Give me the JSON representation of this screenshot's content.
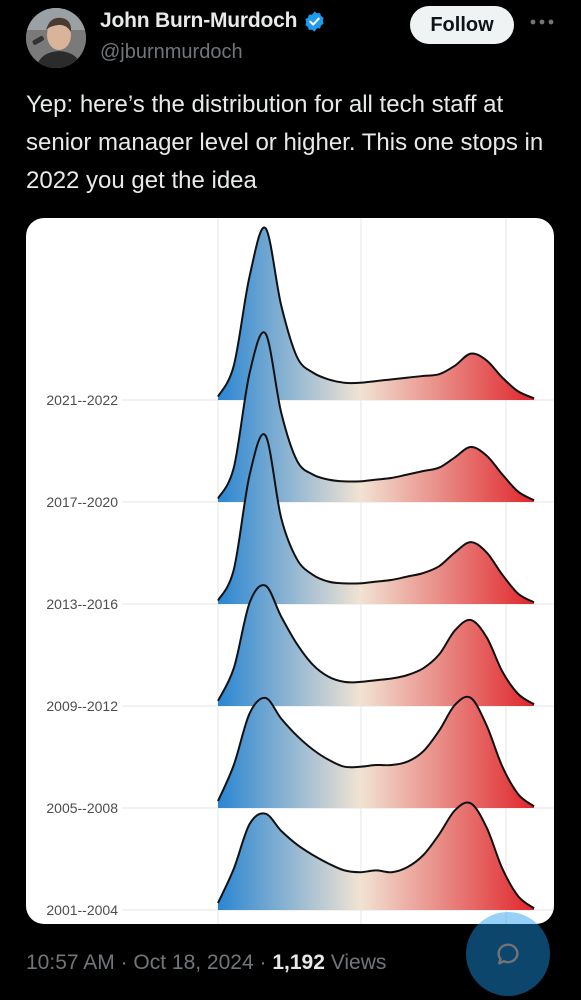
{
  "author": {
    "display_name": "John Burn-Murdoch",
    "handle": "@jburnmurdoch",
    "verified": true,
    "avatar_icon": "person-avatar-icon"
  },
  "actions": {
    "follow_label": "Follow",
    "more_icon": "more-icon"
  },
  "tweet": {
    "text": "Yep: here’s the distribution for all tech staff at senior manager level or higher. This one stops in 2022 you get the idea"
  },
  "meta": {
    "time": "10:57 AM",
    "sep1": " · ",
    "date": "Oct 18, 2024",
    "sep2": " · ",
    "views_count": "1,192",
    "views_label": " Views"
  },
  "colors": {
    "background": "#000000",
    "accent": "#1d9bf0",
    "left_color": "#2a86d2",
    "mid_color": "#f1e3d3",
    "right_color": "#e0262c"
  },
  "chart_data": {
    "type": "ridgeline",
    "title": "",
    "xlabel": "",
    "ylabel": "",
    "grid": true,
    "categories": [
      "2021--2022",
      "2017--2020",
      "2013--2016",
      "2009--2012",
      "2005--2008",
      "2001--2004"
    ],
    "x": [
      0,
      0.05,
      0.1,
      0.15,
      0.2,
      0.25,
      0.3,
      0.35,
      0.4,
      0.45,
      0.5,
      0.55,
      0.6,
      0.65,
      0.7,
      0.75,
      0.8,
      0.85,
      0.9,
      0.95,
      1.0
    ],
    "series": [
      {
        "category": "2021--2022",
        "values": [
          0.02,
          0.2,
          0.72,
          1.0,
          0.55,
          0.25,
          0.16,
          0.12,
          0.1,
          0.1,
          0.11,
          0.12,
          0.13,
          0.14,
          0.15,
          0.2,
          0.27,
          0.23,
          0.13,
          0.05,
          0.01
        ]
      },
      {
        "category": "2017--2020",
        "values": [
          0.02,
          0.2,
          0.75,
          0.98,
          0.52,
          0.24,
          0.16,
          0.13,
          0.12,
          0.12,
          0.13,
          0.14,
          0.16,
          0.18,
          0.2,
          0.26,
          0.32,
          0.27,
          0.16,
          0.06,
          0.01
        ]
      },
      {
        "category": "2013--2016",
        "values": [
          0.02,
          0.2,
          0.75,
          0.98,
          0.5,
          0.26,
          0.17,
          0.13,
          0.12,
          0.12,
          0.13,
          0.14,
          0.16,
          0.18,
          0.22,
          0.3,
          0.36,
          0.3,
          0.17,
          0.06,
          0.01
        ]
      },
      {
        "category": "2009--2012",
        "values": [
          0.03,
          0.22,
          0.6,
          0.7,
          0.52,
          0.36,
          0.24,
          0.17,
          0.14,
          0.14,
          0.15,
          0.16,
          0.18,
          0.22,
          0.3,
          0.44,
          0.5,
          0.4,
          0.2,
          0.07,
          0.01
        ]
      },
      {
        "category": "2005--2008",
        "values": [
          0.04,
          0.25,
          0.55,
          0.64,
          0.52,
          0.42,
          0.34,
          0.28,
          0.24,
          0.24,
          0.25,
          0.25,
          0.27,
          0.33,
          0.45,
          0.6,
          0.64,
          0.48,
          0.24,
          0.08,
          0.01
        ]
      },
      {
        "category": "2001--2004",
        "values": [
          0.04,
          0.24,
          0.5,
          0.56,
          0.46,
          0.38,
          0.32,
          0.27,
          0.23,
          0.22,
          0.23,
          0.22,
          0.25,
          0.32,
          0.44,
          0.58,
          0.62,
          0.48,
          0.24,
          0.08,
          0.01
        ]
      }
    ]
  }
}
